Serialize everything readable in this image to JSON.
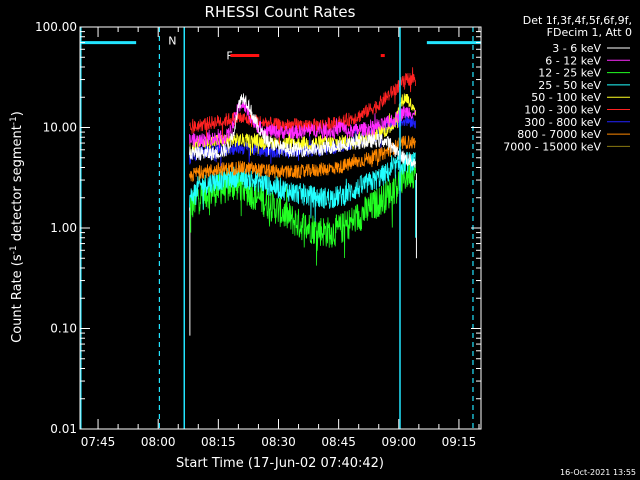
{
  "chart_data": {
    "type": "line",
    "title": "RHESSI Count Rates",
    "xlabel": "Start Time (17-Jun-02 07:40:42)",
    "ylabel_parts": [
      "Count Rate (s",
      "-1",
      " detector segment",
      "-1",
      ")"
    ],
    "y_scale": "log",
    "ylim": [
      0.01,
      100.0
    ],
    "y_ticks": [
      {
        "value": 0.01,
        "label": "0.01"
      },
      {
        "value": 0.1,
        "label": "0.10"
      },
      {
        "value": 1.0,
        "label": "1.00"
      },
      {
        "value": 10.0,
        "label": "10.00"
      },
      {
        "value": 100.0,
        "label": "100.00"
      }
    ],
    "x_unit": "minutes after 07:40",
    "xlim": [
      0.5,
      100.5
    ],
    "x_ticks": [
      {
        "value": 5,
        "label": "07:45"
      },
      {
        "value": 20,
        "label": "08:00"
      },
      {
        "value": 35,
        "label": "08:15"
      },
      {
        "value": 50,
        "label": "08:30"
      },
      {
        "value": 65,
        "label": "08:45"
      },
      {
        "value": 80,
        "label": "09:00"
      },
      {
        "value": 95,
        "label": "09:15"
      }
    ],
    "legend": {
      "placement": "right",
      "header": [
        "Det 1f,3f,4f,5f,6f,9f,",
        "FDecim 1, Att 0"
      ]
    },
    "series": [
      {
        "name": "3 - 6 keV",
        "color": "#ffffff",
        "points": [
          [
            27.8,
            5.5
          ],
          [
            30,
            5.5
          ],
          [
            34,
            5.5
          ],
          [
            37,
            6
          ],
          [
            38.5,
            8
          ],
          [
            39.5,
            13
          ],
          [
            40.5,
            19
          ],
          [
            41.5,
            20
          ],
          [
            42.5,
            17
          ],
          [
            44,
            12
          ],
          [
            45.5,
            9
          ],
          [
            48,
            7
          ],
          [
            52,
            6
          ],
          [
            56,
            6
          ],
          [
            60,
            6
          ],
          [
            64,
            6.5
          ],
          [
            68,
            7
          ],
          [
            72,
            7.2
          ],
          [
            76,
            7.5
          ],
          [
            78,
            6.8
          ],
          [
            80,
            5.5
          ],
          [
            82,
            4.8
          ],
          [
            83.5,
            4.6
          ],
          [
            84.2,
            4.5
          ]
        ]
      },
      {
        "name": "6 - 12 keV",
        "color": "#ff2bff",
        "points": [
          [
            27.8,
            7.5
          ],
          [
            30,
            7.5
          ],
          [
            34,
            7.8
          ],
          [
            37,
            8
          ],
          [
            38.5,
            10
          ],
          [
            39.5,
            14
          ],
          [
            40.5,
            17
          ],
          [
            41.5,
            16.5
          ],
          [
            42.5,
            14
          ],
          [
            44,
            11
          ],
          [
            46,
            9.5
          ],
          [
            50,
            9
          ],
          [
            55,
            9
          ],
          [
            60,
            9.5
          ],
          [
            64,
            9
          ],
          [
            66,
            10.5
          ],
          [
            67,
            9
          ],
          [
            70,
            9.5
          ],
          [
            74,
            10
          ],
          [
            77,
            11
          ],
          [
            79,
            12
          ],
          [
            81,
            14
          ],
          [
            82.5,
            14.5
          ],
          [
            84.2,
            13.5
          ]
        ]
      },
      {
        "name": "12 - 25 keV",
        "color": "#22ff22",
        "points": [
          [
            27.8,
            1.5
          ],
          [
            30,
            2.1
          ],
          [
            35,
            2.4
          ],
          [
            40,
            2.7
          ],
          [
            45,
            2.0
          ],
          [
            50,
            1.5
          ],
          [
            55,
            1.1
          ],
          [
            60,
            0.95
          ],
          [
            63,
            0.9
          ],
          [
            66,
            1.0
          ],
          [
            70,
            1.3
          ],
          [
            74,
            1.7
          ],
          [
            77,
            2.1
          ],
          [
            80,
            2.8
          ],
          [
            82,
            3.4
          ],
          [
            83,
            3.6
          ],
          [
            84.2,
            3.5
          ]
        ]
      },
      {
        "name": "25 - 50 keV",
        "color": "#22ffff",
        "points": [
          [
            27.8,
            1.9
          ],
          [
            30,
            2.6
          ],
          [
            35,
            3.0
          ],
          [
            40,
            3.3
          ],
          [
            45,
            2.9
          ],
          [
            50,
            2.5
          ],
          [
            55,
            2.2
          ],
          [
            60,
            2.0
          ],
          [
            63,
            2.0
          ],
          [
            66,
            2.1
          ],
          [
            70,
            2.5
          ],
          [
            74,
            3.0
          ],
          [
            77,
            3.5
          ],
          [
            80,
            4.2
          ],
          [
            82,
            4.5
          ],
          [
            83,
            4.5
          ],
          [
            84.2,
            4.4
          ]
        ]
      },
      {
        "name": "50 - 100 keV",
        "color": "#ffff22",
        "points": [
          [
            27.8,
            6.0
          ],
          [
            30,
            7.0
          ],
          [
            35,
            7.4
          ],
          [
            40,
            7.5
          ],
          [
            45,
            7.3
          ],
          [
            50,
            7.0
          ],
          [
            55,
            7.0
          ],
          [
            60,
            7.0
          ],
          [
            66,
            7.2
          ],
          [
            72,
            8.0
          ],
          [
            77,
            9.5
          ],
          [
            79,
            11
          ],
          [
            80,
            15
          ],
          [
            81,
            19
          ],
          [
            82,
            20
          ],
          [
            83,
            17
          ],
          [
            84.2,
            13
          ]
        ]
      },
      {
        "name": "100 - 300 keV",
        "color": "#ff2222",
        "points": [
          [
            27.8,
            9.5
          ],
          [
            30,
            10.5
          ],
          [
            35,
            11.5
          ],
          [
            40,
            12.5
          ],
          [
            45,
            11.5
          ],
          [
            50,
            10.5
          ],
          [
            55,
            10.5
          ],
          [
            60,
            10.5
          ],
          [
            65,
            11
          ],
          [
            70,
            13
          ],
          [
            75,
            17
          ],
          [
            78,
            22
          ],
          [
            80,
            26
          ],
          [
            82,
            30
          ],
          [
            83.5,
            31
          ],
          [
            84.2,
            29
          ]
        ]
      },
      {
        "name": "300 - 800 keV",
        "color": "#2222ff",
        "points": [
          [
            27.8,
            5.0
          ],
          [
            30,
            5.6
          ],
          [
            35,
            6.0
          ],
          [
            40,
            6.3
          ],
          [
            45,
            6.0
          ],
          [
            50,
            5.8
          ],
          [
            55,
            5.9
          ],
          [
            60,
            6.0
          ],
          [
            65,
            6.5
          ],
          [
            70,
            7.5
          ],
          [
            75,
            9.0
          ],
          [
            78,
            10.5
          ],
          [
            80,
            11.5
          ],
          [
            82,
            12
          ],
          [
            84.2,
            11.5
          ]
        ]
      },
      {
        "name": "800 - 7000 keV",
        "color": "#ff8800",
        "points": [
          [
            27.8,
            3.2
          ],
          [
            30,
            3.6
          ],
          [
            35,
            3.8
          ],
          [
            40,
            4.0
          ],
          [
            45,
            3.8
          ],
          [
            50,
            3.6
          ],
          [
            55,
            3.6
          ],
          [
            60,
            3.8
          ],
          [
            65,
            4.0
          ],
          [
            70,
            4.6
          ],
          [
            75,
            5.3
          ],
          [
            78,
            6.0
          ],
          [
            80,
            6.8
          ],
          [
            82,
            7.2
          ],
          [
            84.2,
            7.0
          ]
        ]
      },
      {
        "name": "7000 - 15000 keV",
        "color": "#8a7a10",
        "points": []
      }
    ],
    "annotations": {
      "attenuator_color": "#22e5ff",
      "attenuator_bars": [
        [
          0.5,
          14.5
        ],
        [
          87,
          100.5
        ]
      ],
      "attenuator_bar_level": 70,
      "solid_verticals": [
        0.7,
        26.5,
        80.3
      ],
      "dashed_verticals": [
        20.3,
        98.5
      ],
      "n_marker": {
        "label": "N",
        "x": 22.0
      },
      "flare_color": "#ff1111",
      "flare": {
        "label": "F",
        "x": 37.0,
        "segments": [
          [
            38.0,
            45.2
          ],
          [
            75.5,
            76.5
          ]
        ],
        "level": 52
      }
    },
    "timestamp": "16-Oct-2021 13:55"
  }
}
